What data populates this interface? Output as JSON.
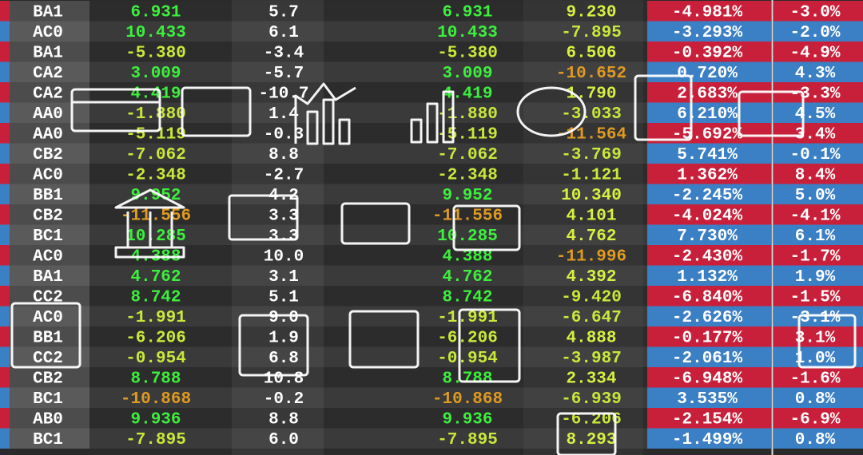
{
  "table": {
    "rows": [
      [
        "BA1",
        "6.931",
        "5.7",
        "6.931",
        "9.230",
        "-4.981%",
        "-3.0%"
      ],
      [
        "AC0",
        "10.433",
        "6.1",
        "10.433",
        "-7.895",
        "-3.293%",
        "-2.0%"
      ],
      [
        "BA1",
        "-5.380",
        "-3.4",
        "-5.380",
        "6.506",
        "-0.392%",
        "-4.9%"
      ],
      [
        "CA2",
        "3.009",
        "-5.7",
        "3.009",
        "-10.652",
        "0.720%",
        "4.3%"
      ],
      [
        "CA2",
        "4.419",
        "-10.7",
        "4.419",
        "1.790",
        "2.683%",
        "-3.3%"
      ],
      [
        "AA0",
        "-1.880",
        "1.4",
        "-1.880",
        "-3.033",
        "6.210%",
        "4.5%"
      ],
      [
        "AA0",
        "-5.119",
        "-0.3",
        "-5.119",
        "-11.564",
        "-5.692%",
        "3.4%"
      ],
      [
        "CB2",
        "-7.062",
        "8.8",
        "-7.062",
        "-3.769",
        "5.741%",
        "-0.1%"
      ],
      [
        "AC0",
        "-2.348",
        "-2.7",
        "-2.348",
        "-1.121",
        "1.362%",
        "8.4%"
      ],
      [
        "BB1",
        "9.952",
        "4.2",
        "9.952",
        "10.340",
        "-2.245%",
        "5.0%"
      ],
      [
        "CB2",
        "-11.556",
        "3.3",
        "-11.556",
        "4.101",
        "-4.024%",
        "-4.1%"
      ],
      [
        "BC1",
        "10.285",
        "3.3",
        "10.285",
        "4.762",
        "7.730%",
        "6.1%"
      ],
      [
        "AC0",
        "4.388",
        "10.0",
        "4.388",
        "-11.996",
        "-2.430%",
        "-1.7%"
      ],
      [
        "BA1",
        "4.762",
        "3.1",
        "4.762",
        "4.392",
        "1.132%",
        "1.9%"
      ],
      [
        "CC2",
        "8.742",
        "5.1",
        "8.742",
        "-9.420",
        "-6.840%",
        "-1.5%"
      ],
      [
        "AC0",
        "-1.991",
        "9.0",
        "-1.991",
        "-6.647",
        "-2.626%",
        "-3.1%"
      ],
      [
        "BB1",
        "-6.206",
        "1.9",
        "-6.206",
        "4.888",
        "-0.177%",
        "3.1%"
      ],
      [
        "CC2",
        "-0.954",
        "6.8",
        "-0.954",
        "-3.987",
        "-2.061%",
        "1.0%"
      ],
      [
        "CB2",
        "8.788",
        "10.8",
        "8.788",
        "2.334",
        "-6.948%",
        "-1.6%"
      ],
      [
        "BC1",
        "-10.868",
        "-0.2",
        "-10.868",
        "-6.939",
        "3.535%",
        "0.8%"
      ],
      [
        "AB0",
        "9.936",
        "8.8",
        "9.936",
        "-6.206",
        "-2.154%",
        "-6.9%"
      ],
      [
        "BC1",
        "-7.895",
        "6.0",
        "-7.895",
        "8.293",
        "-1.499%",
        "0.8%"
      ]
    ]
  }
}
